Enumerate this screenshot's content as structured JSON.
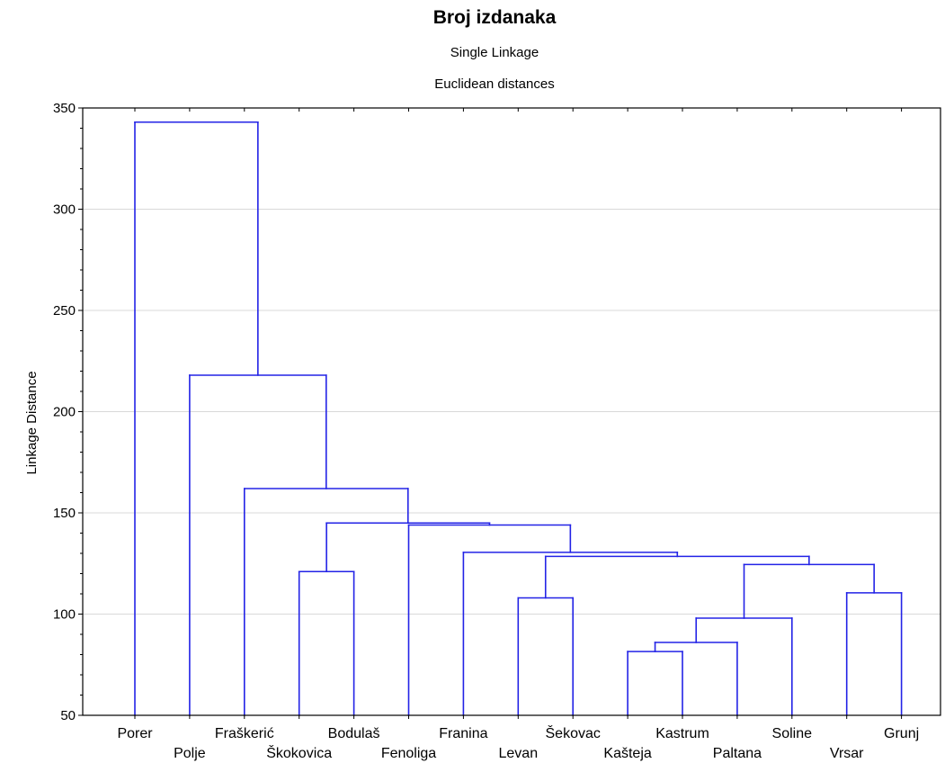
{
  "chart_data": {
    "type": "dendrogram",
    "title": "Broj izdanaka",
    "subtitle": "Single Linkage",
    "subtitle2": "Euclidean distances",
    "ylabel": "Linkage Distance",
    "ylim": [
      50,
      350
    ],
    "yticks": [
      50,
      100,
      150,
      200,
      250,
      300,
      350
    ],
    "grid": true,
    "leaves": [
      "Porer",
      "Polje",
      "Fraškerić",
      "Škokovica",
      "Bodulaš",
      "Fenoliga",
      "Franina",
      "Levan",
      "Šekovac",
      "Kašteja",
      "Kastrum",
      "Paltana",
      "Soline",
      "Vrsar",
      "Grunj"
    ],
    "merges": [
      {
        "left": "Kašteja",
        "right": "Kastrum",
        "distance": 81.5
      },
      {
        "left": "Kašteja+Kastrum",
        "right": "Paltana",
        "distance": 86
      },
      {
        "left": "Kašteja+Kastrum+Paltana",
        "right": "Soline",
        "distance": 98
      },
      {
        "left": "Škokovica",
        "right": "Bodulaš",
        "distance": 121
      },
      {
        "left": "Levan",
        "right": "Šekovac",
        "distance": 108
      },
      {
        "left": "Vrsar",
        "right": "Grunj",
        "distance": 110.5
      },
      {
        "left": "Kašteja..Soline",
        "right": "Vrsar+Grunj",
        "distance": 124.5
      },
      {
        "left": "Levan+Šekovac",
        "right": "Kašteja..Grunj",
        "distance": 128.5
      },
      {
        "left": "Franina",
        "right": "Levan..Grunj",
        "distance": 130.5
      },
      {
        "left": "Fenoliga",
        "right": "Franina..Grunj",
        "distance": 144
      },
      {
        "left": "Škokovica+Bodulaš",
        "right": "Fenoliga..Grunj",
        "distance": 145
      },
      {
        "left": "Fraškerić",
        "right": "Škokovica..Grunj",
        "distance": 162
      },
      {
        "left": "Polje",
        "right": "Fraškerić..Grunj",
        "distance": 218
      },
      {
        "left": "Porer",
        "right": "Polje..Grunj",
        "distance": 343
      }
    ]
  },
  "colors": {
    "link": "#2323e6",
    "grid": "#d9d9d9",
    "axis": "#000000"
  }
}
